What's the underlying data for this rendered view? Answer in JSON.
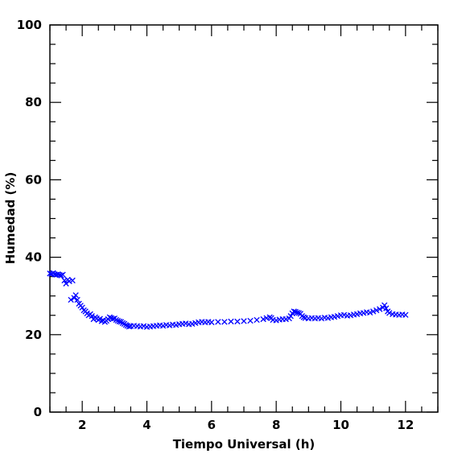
{
  "chart_data": {
    "type": "scatter",
    "title": "",
    "xlabel": "Tiempo Universal (h)",
    "ylabel": "Humedad (%)",
    "xlim": [
      1,
      13
    ],
    "ylim": [
      0,
      100
    ],
    "xticks": [
      2,
      4,
      6,
      8,
      10,
      12
    ],
    "yticks": [
      0,
      20,
      40,
      60,
      80,
      100
    ],
    "grid": false,
    "legend": "none",
    "marker": "x",
    "marker_color": "#0000ff",
    "series": [
      {
        "points": [
          [
            1.0,
            35.8
          ],
          [
            1.05,
            35.7
          ],
          [
            1.1,
            35.9
          ],
          [
            1.15,
            35.6
          ],
          [
            1.2,
            35.5
          ],
          [
            1.25,
            35.6
          ],
          [
            1.3,
            35.4
          ],
          [
            1.35,
            35.3
          ],
          [
            1.4,
            35.5
          ],
          [
            1.45,
            34.0
          ],
          [
            1.5,
            33.2
          ],
          [
            1.55,
            34.2
          ],
          [
            1.6,
            33.8
          ],
          [
            1.65,
            29.0
          ],
          [
            1.7,
            34.0
          ],
          [
            1.75,
            29.5
          ],
          [
            1.8,
            30.2
          ],
          [
            1.85,
            29.0
          ],
          [
            1.9,
            28.0
          ],
          [
            1.95,
            27.5
          ],
          [
            2.0,
            27.0
          ],
          [
            2.05,
            26.3
          ],
          [
            2.1,
            26.0
          ],
          [
            2.15,
            25.5
          ],
          [
            2.2,
            25.0
          ],
          [
            2.25,
            25.3
          ],
          [
            2.3,
            24.8
          ],
          [
            2.35,
            24.0
          ],
          [
            2.4,
            24.5
          ],
          [
            2.45,
            24.2
          ],
          [
            2.5,
            23.8
          ],
          [
            2.55,
            24.1
          ],
          [
            2.6,
            23.5
          ],
          [
            2.65,
            23.7
          ],
          [
            2.7,
            23.3
          ],
          [
            2.75,
            23.6
          ],
          [
            2.8,
            24.0
          ],
          [
            2.85,
            24.5
          ],
          [
            2.9,
            24.3
          ],
          [
            2.95,
            24.1
          ],
          [
            3.0,
            24.2
          ],
          [
            3.05,
            23.8
          ],
          [
            3.1,
            23.6
          ],
          [
            3.15,
            23.4
          ],
          [
            3.2,
            23.3
          ],
          [
            3.25,
            23.0
          ],
          [
            3.3,
            22.8
          ],
          [
            3.35,
            22.5
          ],
          [
            3.4,
            22.3
          ],
          [
            3.45,
            22.1
          ],
          [
            3.5,
            22.2
          ],
          [
            3.6,
            22.3
          ],
          [
            3.7,
            22.2
          ],
          [
            3.8,
            22.1
          ],
          [
            3.9,
            22.2
          ],
          [
            4.0,
            22.0
          ],
          [
            4.1,
            22.1
          ],
          [
            4.2,
            22.2
          ],
          [
            4.3,
            22.3
          ],
          [
            4.4,
            22.4
          ],
          [
            4.5,
            22.3
          ],
          [
            4.6,
            22.5
          ],
          [
            4.7,
            22.4
          ],
          [
            4.8,
            22.6
          ],
          [
            4.9,
            22.5
          ],
          [
            5.0,
            22.7
          ],
          [
            5.1,
            22.8
          ],
          [
            5.2,
            22.9
          ],
          [
            5.3,
            22.7
          ],
          [
            5.4,
            22.8
          ],
          [
            5.5,
            23.0
          ],
          [
            5.6,
            23.2
          ],
          [
            5.7,
            23.3
          ],
          [
            5.8,
            23.2
          ],
          [
            5.9,
            23.3
          ],
          [
            6.0,
            23.2
          ],
          [
            6.2,
            23.3
          ],
          [
            6.4,
            23.3
          ],
          [
            6.6,
            23.4
          ],
          [
            6.8,
            23.4
          ],
          [
            7.0,
            23.5
          ],
          [
            7.2,
            23.6
          ],
          [
            7.4,
            23.8
          ],
          [
            7.6,
            24.0
          ],
          [
            7.7,
            24.3
          ],
          [
            7.8,
            24.5
          ],
          [
            7.85,
            24.3
          ],
          [
            7.9,
            23.8
          ],
          [
            8.0,
            23.7
          ],
          [
            8.1,
            23.9
          ],
          [
            8.2,
            24.0
          ],
          [
            8.3,
            24.0
          ],
          [
            8.4,
            24.2
          ],
          [
            8.45,
            24.8
          ],
          [
            8.5,
            25.5
          ],
          [
            8.55,
            26.0
          ],
          [
            8.6,
            25.9
          ],
          [
            8.65,
            25.7
          ],
          [
            8.7,
            25.6
          ],
          [
            8.75,
            25.4
          ],
          [
            8.8,
            24.8
          ],
          [
            8.85,
            24.5
          ],
          [
            8.9,
            24.3
          ],
          [
            9.0,
            24.2
          ],
          [
            9.1,
            24.3
          ],
          [
            9.2,
            24.2
          ],
          [
            9.3,
            24.3
          ],
          [
            9.4,
            24.2
          ],
          [
            9.5,
            24.4
          ],
          [
            9.6,
            24.3
          ],
          [
            9.7,
            24.5
          ],
          [
            9.8,
            24.6
          ],
          [
            9.9,
            24.8
          ],
          [
            10.0,
            25.0
          ],
          [
            10.1,
            25.1
          ],
          [
            10.2,
            24.9
          ],
          [
            10.3,
            25.0
          ],
          [
            10.4,
            25.2
          ],
          [
            10.5,
            25.3
          ],
          [
            10.6,
            25.5
          ],
          [
            10.7,
            25.6
          ],
          [
            10.8,
            25.8
          ],
          [
            10.9,
            25.7
          ],
          [
            11.0,
            26.0
          ],
          [
            11.1,
            26.3
          ],
          [
            11.2,
            26.6
          ],
          [
            11.3,
            27.0
          ],
          [
            11.35,
            27.6
          ],
          [
            11.4,
            26.8
          ],
          [
            11.45,
            26.0
          ],
          [
            11.5,
            25.6
          ],
          [
            11.6,
            25.3
          ],
          [
            11.7,
            25.2
          ],
          [
            11.8,
            25.1
          ],
          [
            11.9,
            25.2
          ],
          [
            12.0,
            25.1
          ]
        ]
      }
    ]
  }
}
